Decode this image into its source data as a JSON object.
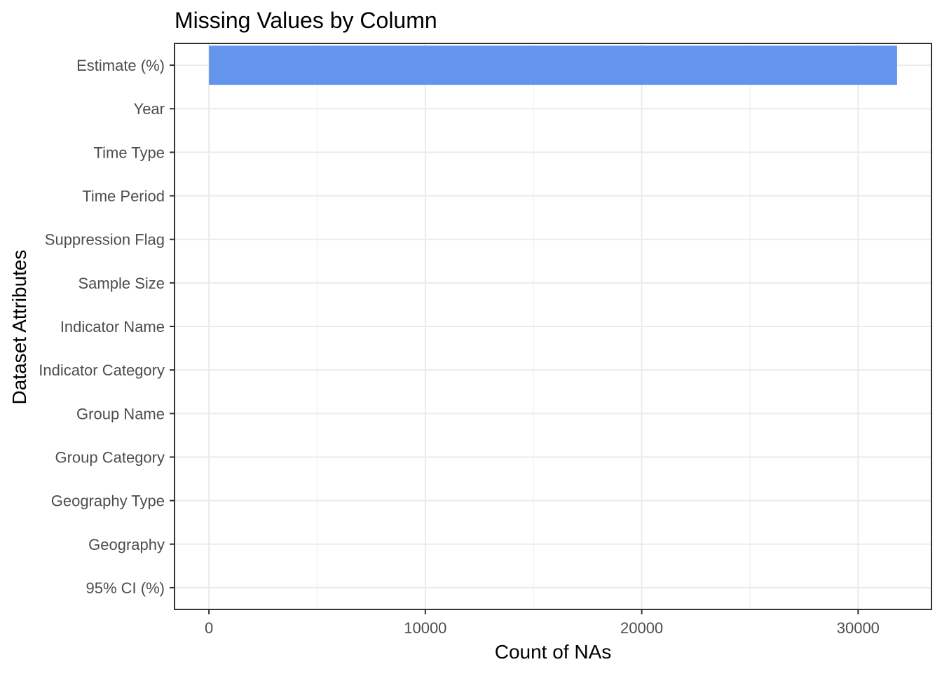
{
  "chart_data": {
    "type": "bar",
    "orientation": "horizontal",
    "title": "Missing Values by Column",
    "xlabel": "Count of NAs",
    "ylabel": "Dataset Attributes",
    "categories": [
      "Estimate (%)",
      "Year",
      "Time Type",
      "Time Period",
      "Suppression Flag",
      "Sample Size",
      "Indicator Name",
      "Indicator Category",
      "Group Name",
      "Group Category",
      "Geography Type",
      "Geography",
      "95% CI (%)"
    ],
    "values": [
      31800,
      0,
      0,
      0,
      0,
      0,
      0,
      0,
      0,
      0,
      0,
      0,
      0
    ],
    "xlim": [
      -1590,
      33390
    ],
    "xticks": [
      0,
      10000,
      20000,
      30000
    ],
    "xtick_labels": [
      "0",
      "10000",
      "20000",
      "30000"
    ],
    "bar_color": "#6495ED",
    "grid": true,
    "legend": "none"
  }
}
